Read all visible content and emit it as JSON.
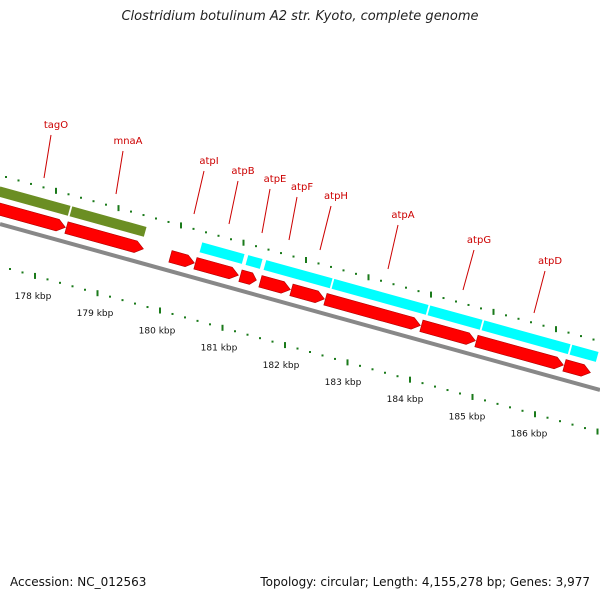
{
  "title": "Clostridium botulinum A2 str. Kyoto, complete genome",
  "footer": {
    "accession": "Accession: NC_012563",
    "summary": "Topology: circular; Length: 4,155,278 bp; Genes: 3,977"
  },
  "colors": {
    "cds": "#ff0000",
    "gene_green": "#6b8e23",
    "gene_cyan": "#00ffff",
    "label": "#cc0000",
    "tick": "#1a7a1a",
    "backbone": "#888888"
  },
  "scale_labels": [
    "178 kbp",
    "179 kbp",
    "180 kbp",
    "181 kbp",
    "182 kbp",
    "183 kbp",
    "184 kbp",
    "185 kbp",
    "186 kbp"
  ],
  "genes": [
    "tagO",
    "mnaA",
    "atpI",
    "atpB",
    "atpE",
    "atpF",
    "atpH",
    "atpA",
    "atpG",
    "atpD"
  ]
}
